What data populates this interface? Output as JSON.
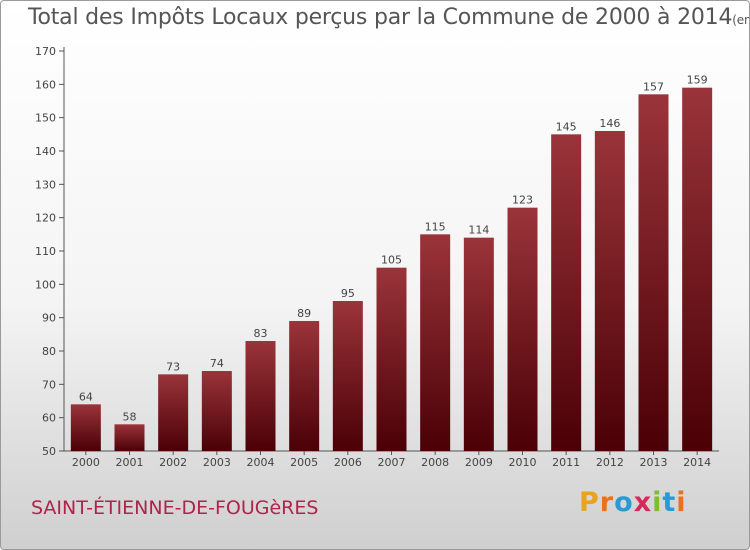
{
  "header": {
    "title": "Total des Impôts Locaux perçus par la Commune de 2000 à 2014",
    "unit": "(en milliers d'€)"
  },
  "footer": {
    "commune": "SAINT-ÉTIENNE-DE-FOUGèRES",
    "logo_letters": [
      "P",
      "r",
      "o",
      "x",
      "i",
      "t",
      "i"
    ],
    "logo_colors": [
      "#e8a41c",
      "#e8731c",
      "#2a9ad4",
      "#d6285a",
      "#7bbf2a",
      "#2a9ad4",
      "#e8731c"
    ]
  },
  "chart_data": {
    "type": "bar",
    "title": "Total des Impôts Locaux perçus par la Commune de 2000 à 2014",
    "xlabel": "",
    "ylabel": "(en milliers d'€)",
    "categories": [
      "2000",
      "2001",
      "2002",
      "2003",
      "2004",
      "2005",
      "2006",
      "2007",
      "2008",
      "2009",
      "2010",
      "2011",
      "2012",
      "2013",
      "2014"
    ],
    "values": [
      64,
      58,
      73,
      74,
      83,
      89,
      95,
      105,
      115,
      114,
      123,
      145,
      146,
      157,
      159
    ],
    "ylim": [
      50,
      170
    ],
    "yticks": [
      50,
      60,
      70,
      80,
      90,
      100,
      110,
      120,
      130,
      140,
      150,
      160,
      170
    ],
    "grid": false,
    "bar_color": "#7a1a22"
  }
}
